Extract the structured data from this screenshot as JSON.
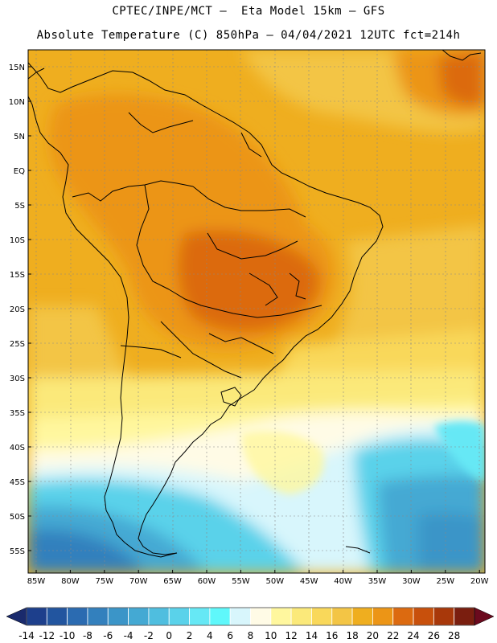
{
  "title_line1": "CPTEC/INPE/MCT –  Eta Model 15km – GFS",
  "title_line2": "Absolute Temperature (C) 850hPa – 04/04/2021 12UTC fct=214h",
  "lat_labels": [
    "15N",
    "10N",
    "5N",
    "EQ",
    "5S",
    "10S",
    "15S",
    "20S",
    "25S",
    "30S",
    "35S",
    "40S",
    "45S",
    "50S",
    "55S"
  ],
  "lon_labels": [
    "85W",
    "80W",
    "75W",
    "70W",
    "65W",
    "60W",
    "55W",
    "50W",
    "45W",
    "40W",
    "35W",
    "30W",
    "25W",
    "20W"
  ],
  "colorbar": {
    "labels": [
      "-14",
      "-12",
      "-10",
      "-8",
      "-6",
      "-4",
      "-2",
      "0",
      "2",
      "4",
      "6",
      "8",
      "10",
      "12",
      "14",
      "16",
      "18",
      "20",
      "22",
      "24",
      "26",
      "28"
    ],
    "colors": [
      "#1d3f8c",
      "#22559f",
      "#2b6bb1",
      "#3380bd",
      "#3b95c8",
      "#44a9d3",
      "#4fbedf",
      "#5ad2ea",
      "#66e8f5",
      "#5ff8fb",
      "#d8f6fc",
      "#fffbe6",
      "#fff79e",
      "#fbe97a",
      "#f9d85a",
      "#f3c545",
      "#efae1f",
      "#ec9516",
      "#dc6a10",
      "#c8500c",
      "#a8380a",
      "#7a1e0f"
    ],
    "low_arrow_color": "#1a2a6c",
    "high_arrow_color": "#6b0a1e"
  }
}
